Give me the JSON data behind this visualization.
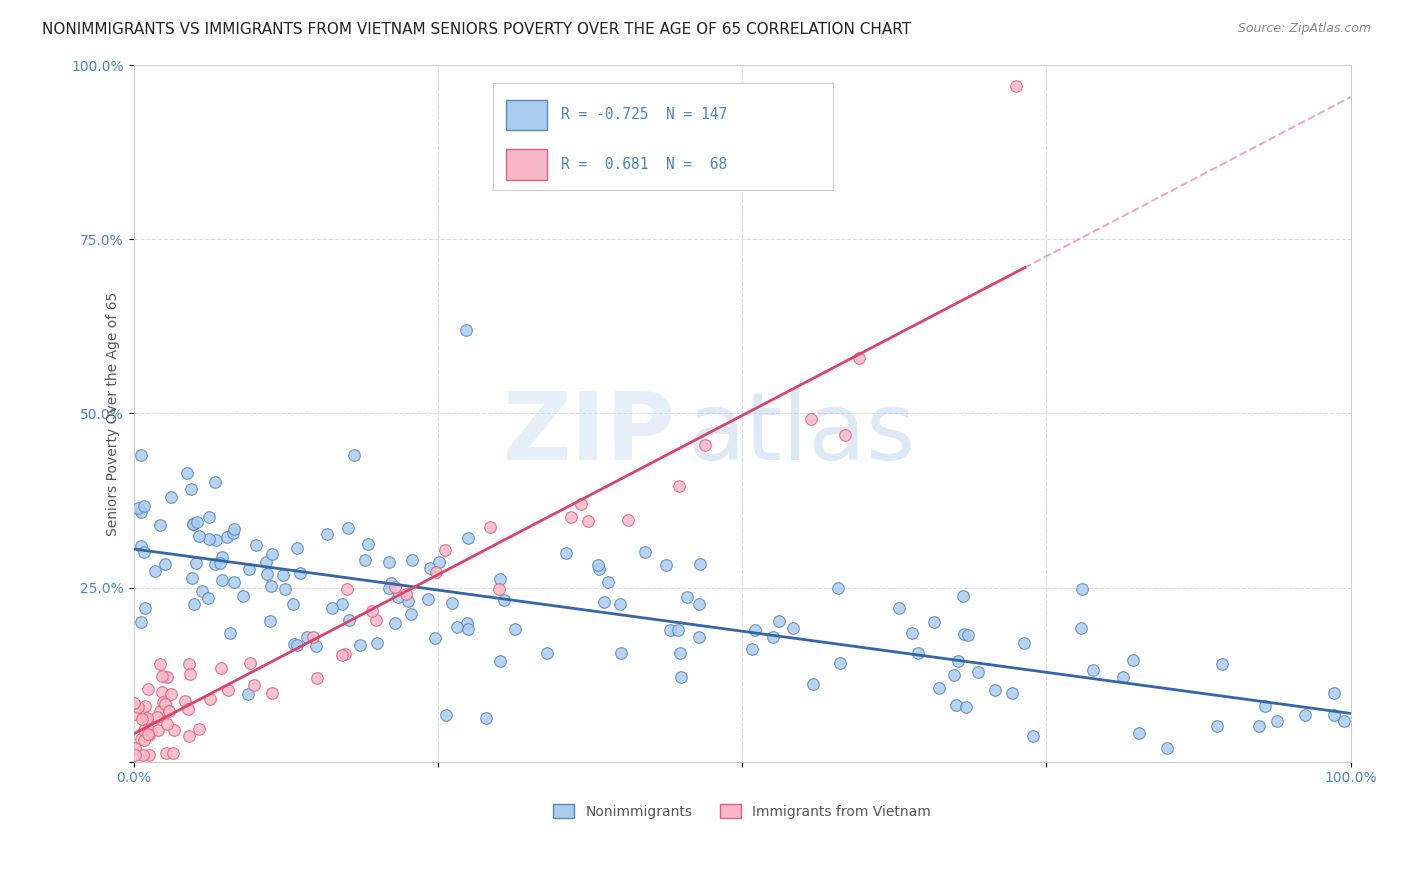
{
  "title": "NONIMMIGRANTS VS IMMIGRANTS FROM VIETNAM SENIORS POVERTY OVER THE AGE OF 65 CORRELATION CHART",
  "source": "Source: ZipAtlas.com",
  "ylabel": "Seniors Poverty Over the Age of 65",
  "watermark_zip": "ZIP",
  "watermark_atlas": "atlas",
  "series": [
    {
      "label": "Nonimmigrants",
      "R": -0.725,
      "N": 147,
      "color": "#aaccee",
      "edge_color": "#5588bb",
      "trend_color": "#3366aa"
    },
    {
      "label": "Immigrants from Vietnam",
      "R": 0.681,
      "N": 68,
      "color": "#f9b8c8",
      "edge_color": "#e06080",
      "trend_color": "#dd4466"
    }
  ],
  "xlim": [
    0,
    1
  ],
  "ylim": [
    0,
    1
  ],
  "xticks": [
    0.0,
    0.25,
    0.5,
    0.75,
    1.0
  ],
  "yticks": [
    0.0,
    0.25,
    0.5,
    0.75,
    1.0
  ],
  "xticklabels": [
    "0.0%",
    "",
    "",
    "",
    "100.0%"
  ],
  "yticklabels": [
    "",
    "25.0%",
    "50.0%",
    "75.0%",
    "100.0%"
  ],
  "grid_color": "#dddddd",
  "background_color": "#ffffff",
  "title_fontsize": 11,
  "axis_label_fontsize": 10,
  "tick_fontsize": 10,
  "source_fontsize": 9,
  "legend_fontsize": 11
}
